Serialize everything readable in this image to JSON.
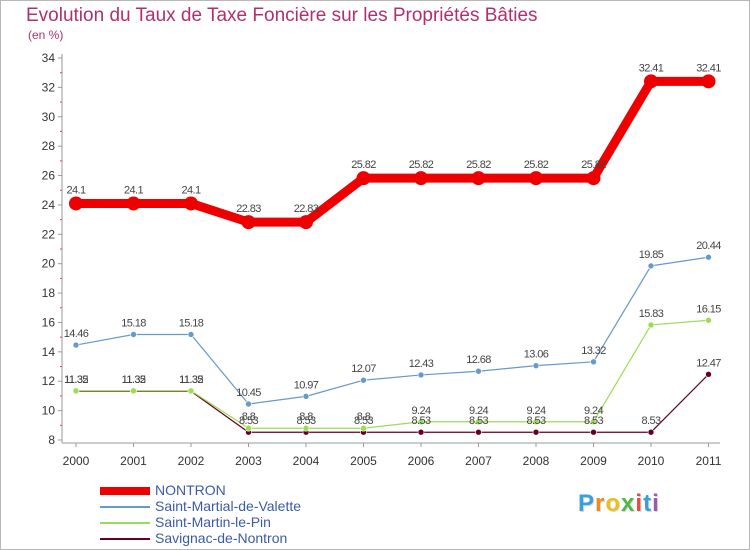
{
  "title": "Evolution du Taux de Taxe Foncière sur les Propriétés Bâties",
  "unit_label": "(en %)",
  "chart_data": {
    "type": "line",
    "title": "Evolution du Taux de Taxe Foncière sur les Propriétés Bâties",
    "ylabel": "(en %)",
    "xlabel": "",
    "categories": [
      "2000",
      "2001",
      "2002",
      "2003",
      "2004",
      "2005",
      "2006",
      "2007",
      "2008",
      "2009",
      "2010",
      "2011"
    ],
    "ylim": [
      8,
      34
    ],
    "yticks": [
      8,
      10,
      12,
      14,
      16,
      18,
      20,
      22,
      24,
      26,
      28,
      30,
      32,
      34
    ],
    "grid": false,
    "legend_position": "bottom-left",
    "series": [
      {
        "name": "NONTRON",
        "color": "#ee0000",
        "values": [
          24.1,
          24.1,
          24.1,
          22.83,
          22.83,
          25.82,
          25.82,
          25.82,
          25.82,
          25.82,
          32.41,
          32.41
        ],
        "labels": [
          "24.1",
          "24.1",
          "24.1",
          "22.83",
          "22.83",
          "25.82",
          "25.82",
          "25.82",
          "25.82",
          "25.82",
          "32.41",
          "32.41"
        ]
      },
      {
        "name": "Saint-Martial-de-Valette",
        "color": "#6699cc",
        "values": [
          14.46,
          15.18,
          15.18,
          10.45,
          10.97,
          12.07,
          12.43,
          12.68,
          13.06,
          13.32,
          19.85,
          20.44
        ],
        "labels": [
          "14.46",
          "15.18",
          "15.18",
          "10.45",
          "10.97",
          "12.07",
          "12.43",
          "12.68",
          "13.06",
          "13.32",
          "19.85",
          "20.44"
        ]
      },
      {
        "name": "Saint-Martin-le-Pin",
        "color": "#99dd55",
        "values": [
          11.35,
          11.35,
          11.35,
          8.8,
          8.8,
          8.8,
          9.24,
          9.24,
          9.24,
          9.24,
          15.83,
          16.15
        ],
        "labels": [
          "11.35",
          "11.35",
          "11.35",
          "8.8",
          "8.8",
          "8.8",
          "9.24",
          "9.24",
          "9.24",
          "9.24",
          "15.83",
          "16.15"
        ]
      },
      {
        "name": "Savignac-de-Nontron",
        "color": "#660022",
        "values": [
          11.32,
          11.32,
          11.32,
          8.53,
          8.53,
          8.53,
          8.53,
          8.53,
          8.53,
          8.53,
          8.53,
          12.47
        ],
        "labels": [
          "11.32",
          "11.32",
          "11.32",
          "8.53",
          "8.53",
          "8.53",
          "8.53",
          "8.53",
          "8.53",
          "8.53",
          "8.53",
          "12.47"
        ]
      }
    ]
  },
  "logo": {
    "letters": [
      "P",
      "r",
      "o",
      "x",
      "i",
      "t",
      "i"
    ],
    "colors": [
      "#3aa0d8",
      "#f08a1c",
      "#e7c21a",
      "#4fb848",
      "#e74c3c",
      "#3aa0d8",
      "#9b59b6"
    ]
  }
}
